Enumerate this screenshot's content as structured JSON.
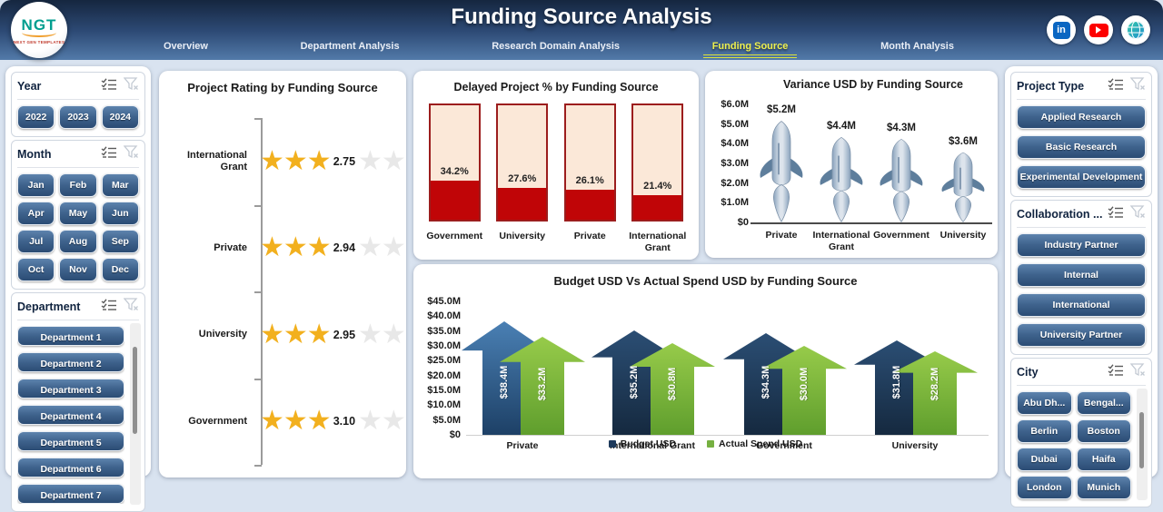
{
  "header": {
    "title": "Funding Source Analysis",
    "logo": {
      "text": "NGT",
      "subtext": "NEXT GEN TEMPLATES"
    },
    "tabs": [
      {
        "label": "Overview",
        "active": false
      },
      {
        "label": "Department Analysis",
        "active": false
      },
      {
        "label": "Research Domain Analysis",
        "active": false
      },
      {
        "label": "Funding Source",
        "active": true
      },
      {
        "label": "Month Analysis",
        "active": false
      }
    ],
    "social_icons": [
      "linkedin-icon",
      "youtube-icon",
      "globe-icon"
    ],
    "colors": {
      "active_tab": "#eef04e",
      "header_top": "#15263f",
      "header_bottom": "#527aa9"
    }
  },
  "filters_left": [
    {
      "title": "Year",
      "layout": "grid3",
      "options": [
        "2022",
        "2023",
        "2024"
      ],
      "scrollbar": false
    },
    {
      "title": "Month",
      "layout": "grid3",
      "options": [
        "Jan",
        "Feb",
        "Mar",
        "Apr",
        "May",
        "Jun",
        "Jul",
        "Aug",
        "Sep",
        "Oct",
        "Nov",
        "Dec"
      ],
      "scrollbar": false
    },
    {
      "title": "Department",
      "layout": "list",
      "options": [
        "Department 1",
        "Department 2",
        "Department 3",
        "Department 4",
        "Department 5",
        "Department 6",
        "Department 7"
      ],
      "scrollbar": true
    }
  ],
  "filters_right": [
    {
      "title": "Project Type",
      "layout": "list",
      "options": [
        "Applied Research",
        "Basic Research",
        "Experimental Development"
      ],
      "scrollbar": false
    },
    {
      "title": "Collaboration ...",
      "layout": "list",
      "options": [
        "Industry Partner",
        "Internal",
        "International",
        "University Partner"
      ],
      "scrollbar": false
    },
    {
      "title": "City",
      "layout": "grid2",
      "options": [
        "Abu Dh...",
        "Bengal...",
        "Berlin",
        "Boston",
        "Dubai",
        "Haifa",
        "London",
        "Munich"
      ],
      "scrollbar": true
    }
  ],
  "chart_data": [
    {
      "type": "rating",
      "title": "Project Rating by Funding Source",
      "categories": [
        "International Grant",
        "Private",
        "University",
        "Government"
      ],
      "values": [
        2.75,
        2.94,
        2.95,
        3.1
      ],
      "value_labels": [
        "2.75",
        "2.94",
        "2.95",
        "3.10"
      ],
      "max_stars": 5,
      "star_color": "#F2B01E",
      "empty_star_color": "#E8E8E8"
    },
    {
      "type": "bar",
      "shape": "thermometer",
      "title": "Delayed Project % by Funding Source",
      "categories": [
        "Government",
        "University",
        "Private",
        "International Grant"
      ],
      "values": [
        34.2,
        27.6,
        26.1,
        21.4
      ],
      "value_labels": [
        "34.2%",
        "27.6%",
        "26.1%",
        "21.4%"
      ],
      "ylim": [
        0,
        100
      ],
      "bar_fill": "#C00507",
      "bar_bg": "#FBE8D8",
      "bar_border": "#9C1D1D"
    },
    {
      "type": "bar",
      "shape": "rocket",
      "title": "Variance USD by Funding Source",
      "categories": [
        "Private",
        "International Grant",
        "Government",
        "University"
      ],
      "values": [
        5.2,
        4.4,
        4.3,
        3.6
      ],
      "value_labels": [
        "$5.2M",
        "$4.4M",
        "$4.3M",
        "$3.6M"
      ],
      "y_ticks": [
        "$6.0M",
        "$5.0M",
        "$4.0M",
        "$3.0M",
        "$2.0M",
        "$1.0M",
        "$0"
      ],
      "ylim": [
        0,
        6
      ]
    },
    {
      "type": "bar",
      "shape": "arrow",
      "title": "Budget USD Vs Actual Spend USD by Funding Source",
      "categories": [
        "Private",
        "International Grant",
        "Government",
        "University"
      ],
      "series": [
        {
          "name": "Budget USD",
          "values": [
            38.4,
            35.2,
            34.3,
            31.8
          ],
          "value_labels": [
            "$38.4M",
            "$35.2M",
            "$34.3M",
            "$31.8M"
          ],
          "color": "#1E3A5C",
          "first_color": "#2F6398"
        },
        {
          "name": "Actual Spend USD",
          "values": [
            33.2,
            30.8,
            30.0,
            28.2
          ],
          "value_labels": [
            "$33.2M",
            "$30.8M",
            "$30.0M",
            "$28.2M"
          ],
          "color": "#76B041"
        }
      ],
      "y_ticks": [
        "$45.0M",
        "$40.0M",
        "$35.0M",
        "$30.0M",
        "$25.0M",
        "$20.0M",
        "$15.0M",
        "$10.0M",
        "$5.0M",
        "$0"
      ],
      "ylim": [
        0,
        45
      ],
      "legend": [
        "Budget USD",
        "Actual Spend USD"
      ]
    }
  ]
}
